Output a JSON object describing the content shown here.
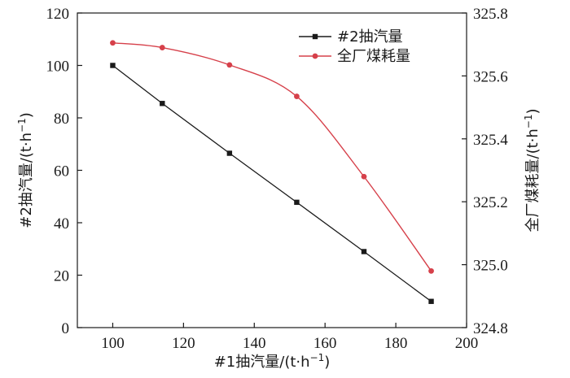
{
  "chart_data": {
    "type": "line",
    "x": [
      100,
      114,
      133,
      152,
      171,
      190
    ],
    "xlabel": "#1抽汽量/(t·h",
    "xlabel_sup": "−1",
    "xlabel_tail": ")",
    "xlim": [
      90,
      200
    ],
    "xticks": [
      100,
      120,
      140,
      160,
      180,
      200
    ],
    "xtick_labels": [
      "100",
      "120",
      "140",
      "160",
      "180",
      "200"
    ],
    "ylabel_left": "#2抽汽量/(t·h",
    "ylabel_left_sup": "−1",
    "ylabel_left_tail": ")",
    "ylim_left": [
      0,
      120
    ],
    "yticks_left": [
      0,
      20,
      40,
      60,
      80,
      100,
      120
    ],
    "ytick_labels_left": [
      "0",
      "20",
      "40",
      "60",
      "80",
      "100",
      "120"
    ],
    "ylabel_right": "全厂煤耗量/(t·h",
    "ylabel_right_sup": "−1",
    "ylabel_right_tail": ")",
    "ylim_right": [
      324.8,
      325.8
    ],
    "yticks_right": [
      324.8,
      325.0,
      325.2,
      325.4,
      325.6,
      325.8
    ],
    "ytick_labels_right": [
      "324.8",
      "325.0",
      "325.2",
      "325.4",
      "325.6",
      "325.8"
    ],
    "series": [
      {
        "name": "#2抽汽量",
        "axis": "left",
        "marker": "square",
        "color": "#1a1a1a",
        "smooth": false,
        "values": [
          100,
          85.5,
          66.5,
          47.8,
          29.0,
          10.0
        ]
      },
      {
        "name": "全厂煤耗量",
        "axis": "right",
        "marker": "circle",
        "color": "#d6404a",
        "smooth": true,
        "values": [
          325.705,
          325.69,
          325.635,
          325.535,
          325.28,
          324.98
        ]
      }
    ],
    "legend_position": "top-right",
    "grid": false
  }
}
